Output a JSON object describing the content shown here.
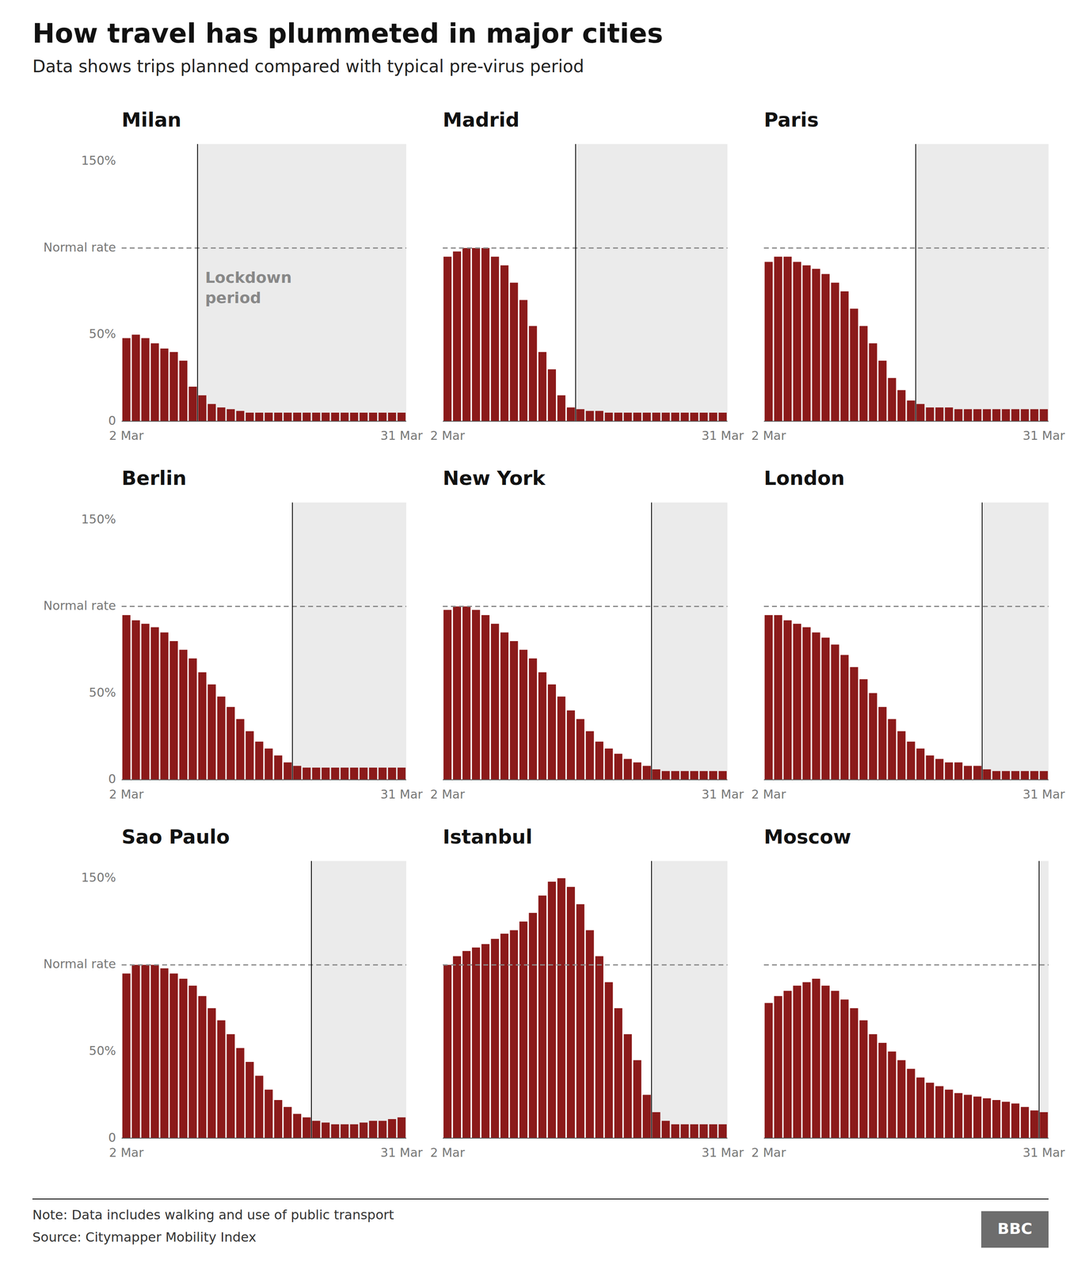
{
  "title": "How travel has plummeted in major cities",
  "subtitle": "Data shows trips planned compared with typical pre-virus period",
  "annotations": [
    "Note: Data includes walking and use of public transport",
    "Source: Citymapper Mobility Index",
    "BBC"
  ],
  "chart_data": [
    {
      "type": "bar",
      "title": "Milan",
      "categories": [
        "2 Mar",
        null,
        null,
        null,
        null,
        null,
        null,
        null,
        null,
        null,
        null,
        null,
        null,
        null,
        null,
        null,
        null,
        null,
        null,
        null,
        null,
        null,
        null,
        null,
        null,
        null,
        null,
        null,
        null,
        "31 Mar"
      ],
      "values": [
        48,
        50,
        48,
        45,
        42,
        40,
        35,
        20,
        15,
        10,
        8,
        7,
        6,
        5,
        5,
        5,
        5,
        5,
        5,
        5,
        5,
        5,
        5,
        5,
        5,
        5,
        5,
        5,
        5,
        5
      ],
      "color": "#8B1A1A",
      "ylim": [
        0,
        160
      ],
      "yticks": [
        0,
        {
          "value": 50,
          "label": "50%"
        },
        {
          "value": 100,
          "label": "Normal rate"
        },
        {
          "value": 150,
          "label": "150%"
        }
      ],
      "normal_rate": 100,
      "lockdown": {
        "start_day": 8,
        "color": "#EBEBEB"
      },
      "annotations": [
        "Lockdown\nperiod"
      ]
    },
    {
      "type": "bar",
      "title": "Madrid",
      "categories": [
        "2 Mar",
        null,
        null,
        null,
        null,
        null,
        null,
        null,
        null,
        null,
        null,
        null,
        null,
        null,
        null,
        null,
        null,
        null,
        null,
        null,
        null,
        null,
        null,
        null,
        null,
        null,
        null,
        null,
        null,
        "31 Mar"
      ],
      "values": [
        95,
        98,
        100,
        100,
        100,
        95,
        90,
        80,
        70,
        55,
        40,
        30,
        15,
        8,
        7,
        6,
        6,
        5,
        5,
        5,
        5,
        5,
        5,
        5,
        5,
        5,
        5,
        5,
        5,
        5
      ],
      "color": "#8B1A1A",
      "ylim": [
        0,
        160
      ],
      "tick_labels": "x",
      "normal_rate": 100,
      "lockdown": {
        "start_day": 14,
        "color": "#EBEBEB"
      }
    },
    {
      "type": "bar",
      "title": "Paris",
      "categories": [
        "2 Mar",
        null,
        null,
        null,
        null,
        null,
        null,
        null,
        null,
        null,
        null,
        null,
        null,
        null,
        null,
        null,
        null,
        null,
        null,
        null,
        null,
        null,
        null,
        null,
        null,
        null,
        null,
        null,
        null,
        "31 Mar"
      ],
      "values": [
        92,
        95,
        95,
        92,
        90,
        88,
        85,
        80,
        75,
        65,
        55,
        45,
        35,
        25,
        18,
        12,
        10,
        8,
        8,
        8,
        7,
        7,
        7,
        7,
        7,
        7,
        7,
        7,
        7,
        7
      ],
      "color": "#8B1A1A",
      "ylim": [
        0,
        160
      ],
      "tick_labels": "x",
      "normal_rate": 100,
      "lockdown": {
        "start_day": 16,
        "color": "#EBEBEB"
      }
    },
    {
      "type": "bar",
      "title": "Berlin",
      "categories": [
        "2 Mar",
        null,
        null,
        null,
        null,
        null,
        null,
        null,
        null,
        null,
        null,
        null,
        null,
        null,
        null,
        null,
        null,
        null,
        null,
        null,
        null,
        null,
        null,
        null,
        null,
        null,
        null,
        null,
        null,
        "31 Mar"
      ],
      "values": [
        95,
        92,
        90,
        88,
        85,
        80,
        75,
        70,
        62,
        55,
        48,
        42,
        35,
        28,
        22,
        18,
        14,
        10,
        8,
        7,
        7,
        7,
        7,
        7,
        7,
        7,
        7,
        7,
        7,
        7
      ],
      "color": "#8B1A1A",
      "ylim": [
        0,
        160
      ],
      "yticks": [
        0,
        {
          "value": 50,
          "label": "50%"
        },
        {
          "value": 100,
          "label": "Normal rate"
        },
        {
          "value": 150,
          "label": "150%"
        }
      ],
      "normal_rate": 100,
      "lockdown": {
        "start_day": 18,
        "color": "#EBEBEB"
      }
    },
    {
      "type": "bar",
      "title": "New York",
      "categories": [
        "2 Mar",
        null,
        null,
        null,
        null,
        null,
        null,
        null,
        null,
        null,
        null,
        null,
        null,
        null,
        null,
        null,
        null,
        null,
        null,
        null,
        null,
        null,
        null,
        null,
        null,
        null,
        null,
        null,
        null,
        "31 Mar"
      ],
      "values": [
        98,
        100,
        100,
        98,
        95,
        90,
        85,
        80,
        75,
        70,
        62,
        55,
        48,
        40,
        35,
        28,
        22,
        18,
        15,
        12,
        10,
        8,
        6,
        5,
        5,
        5,
        5,
        5,
        5,
        5
      ],
      "color": "#8B1A1A",
      "ylim": [
        0,
        160
      ],
      "tick_labels": "x",
      "normal_rate": 100,
      "lockdown": {
        "start_day": 22,
        "color": "#EBEBEB"
      }
    },
    {
      "type": "bar",
      "title": "London",
      "categories": [
        "2 Mar",
        null,
        null,
        null,
        null,
        null,
        null,
        null,
        null,
        null,
        null,
        null,
        null,
        null,
        null,
        null,
        null,
        null,
        null,
        null,
        null,
        null,
        null,
        null,
        null,
        null,
        null,
        null,
        null,
        "31 Mar"
      ],
      "values": [
        95,
        95,
        92,
        90,
        88,
        85,
        82,
        78,
        72,
        65,
        58,
        50,
        42,
        35,
        28,
        22,
        18,
        14,
        12,
        10,
        10,
        8,
        8,
        6,
        5,
        5,
        5,
        5,
        5,
        5
      ],
      "color": "#8B1A1A",
      "ylim": [
        0,
        160
      ],
      "tick_labels": "x",
      "normal_rate": 100,
      "lockdown": {
        "start_day": 23,
        "color": "#EBEBEB"
      }
    },
    {
      "type": "bar",
      "title": "Sao Paulo",
      "categories": [
        "2 Mar",
        null,
        null,
        null,
        null,
        null,
        null,
        null,
        null,
        null,
        null,
        null,
        null,
        null,
        null,
        null,
        null,
        null,
        null,
        null,
        null,
        null,
        null,
        null,
        null,
        null,
        null,
        null,
        null,
        "31 Mar"
      ],
      "values": [
        95,
        100,
        100,
        100,
        98,
        95,
        92,
        88,
        82,
        75,
        68,
        60,
        52,
        44,
        36,
        28,
        22,
        18,
        14,
        12,
        10,
        9,
        8,
        8,
        8,
        9,
        10,
        10,
        11,
        12
      ],
      "color": "#8B1A1A",
      "ylim": [
        0,
        160
      ],
      "yticks": [
        0,
        {
          "value": 50,
          "label": "50%"
        },
        {
          "value": 100,
          "label": "Normal rate"
        },
        {
          "value": 150,
          "label": "150%"
        }
      ],
      "normal_rate": 100,
      "lockdown": {
        "start_day": 20,
        "color": "#EBEBEB"
      }
    },
    {
      "type": "bar",
      "title": "Istanbul",
      "categories": [
        "2 Mar",
        null,
        null,
        null,
        null,
        null,
        null,
        null,
        null,
        null,
        null,
        null,
        null,
        null,
        null,
        null,
        null,
        null,
        null,
        null,
        null,
        null,
        null,
        null,
        null,
        null,
        null,
        null,
        null,
        "31 Mar"
      ],
      "values": [
        100,
        105,
        108,
        110,
        112,
        115,
        118,
        120,
        125,
        130,
        140,
        148,
        150,
        145,
        135,
        120,
        105,
        90,
        75,
        60,
        45,
        25,
        15,
        10,
        8,
        8,
        8,
        8,
        8,
        8
      ],
      "color": "#8B1A1A",
      "ylim": [
        0,
        160
      ],
      "tick_labels": "x",
      "normal_rate": 100,
      "lockdown": {
        "start_day": 22,
        "color": "#EBEBEB"
      }
    },
    {
      "type": "bar",
      "title": "Moscow",
      "categories": [
        "2 Mar",
        null,
        null,
        null,
        null,
        null,
        null,
        null,
        null,
        null,
        null,
        null,
        null,
        null,
        null,
        null,
        null,
        null,
        null,
        null,
        null,
        null,
        null,
        null,
        null,
        null,
        null,
        null,
        null,
        "31 Mar"
      ],
      "values": [
        78,
        82,
        85,
        88,
        90,
        92,
        88,
        85,
        80,
        75,
        68,
        60,
        55,
        50,
        45,
        40,
        35,
        32,
        30,
        28,
        26,
        25,
        24,
        23,
        22,
        21,
        20,
        18,
        16,
        15
      ],
      "color": "#8B1A1A",
      "ylim": [
        0,
        160
      ],
      "tick_labels": "x",
      "normal_rate": 100,
      "lockdown": {
        "start_day": 29,
        "color": "#EBEBEB"
      }
    }
  ]
}
